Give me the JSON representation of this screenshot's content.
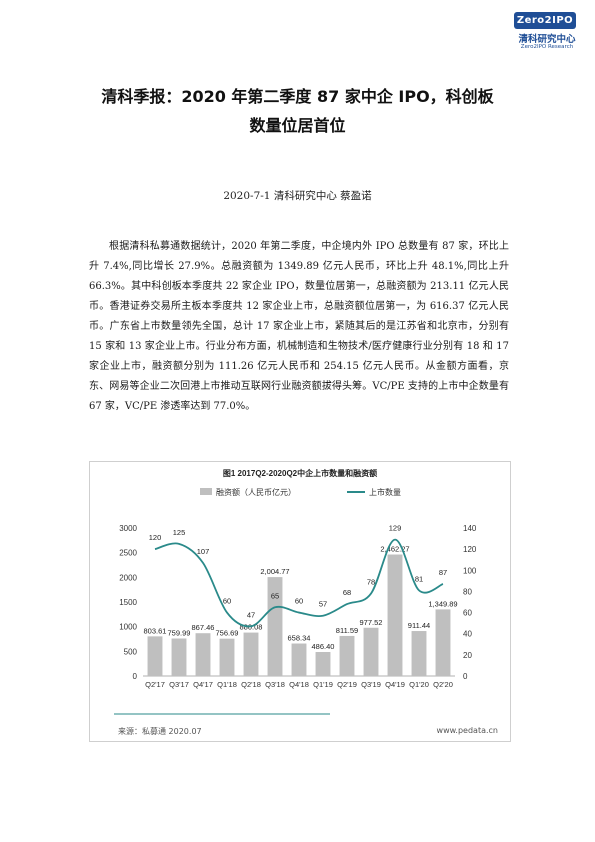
{
  "header": {
    "logo_badge": "Zero2IPO",
    "logo_cn": "清科研究中心",
    "logo_en": "Zero2IPO Research"
  },
  "title": {
    "line1": "清科季报：2020 年第二季度 87 家中企 IPO，科创板",
    "line2": "数量位居首位"
  },
  "byline": "2020-7-1 清科研究中心 蔡盈诺",
  "paragraph": "根据清科私募通数据统计，2020 年第二季度，中企境内外 IPO 总数量有 87 家，环比上升 7.4%,同比增长 27.9%。总融资额为 1349.89 亿元人民币，环比上升 48.1%,同比上升 66.3%。其中科创板本季度共 22 家企业 IPO，数量位居第一，总融资额为 213.11 亿元人民币。香港证券交易所主板本季度共 12 家企业上市，总融资额位居第一，为 616.37 亿元人民币。广东省上市数量领先全国，总计 17 家企业上市，紧随其后的是江苏省和北京市，分别有 15 家和 13 家企业上市。行业分布方面，机械制造和生物技术/医疗健康行业分别有 18 和 17 家企业上市，融资额分别为 111.26 亿元人民币和 254.15 亿元人民币。从金额方面看，京东、网易等企业二次回港上市推动互联网行业融资额拔得头筹。VC/PE 支持的上市中企数量有 67 家，VC/PE 渗透率达到 77.0%。",
  "figure": {
    "source": "来源：私募通 2020.07",
    "site": "www.pedata.cn"
  },
  "chart_data": {
    "type": "bar",
    "title": "图1 2017Q2-2020Q2中企上市数量和融资额",
    "categories": [
      "Q2'17",
      "Q3'17",
      "Q4'17",
      "Q1'18",
      "Q2'18",
      "Q3'18",
      "Q4'18",
      "Q1'19",
      "Q2'19",
      "Q3'19",
      "Q4'19",
      "Q1'20",
      "Q2'20"
    ],
    "series": [
      {
        "name": "融资额（人民币亿元）",
        "type": "bar",
        "axis": "left",
        "color": "#bfbfbf",
        "values": [
          803.61,
          759.99,
          867.46,
          756.69,
          880.08,
          2004.77,
          658.34,
          486.4,
          811.59,
          977.52,
          2462.27,
          911.44,
          1349.89
        ],
        "labels": [
          "803.61",
          "759.99",
          "867.46",
          "756.69",
          "880.08",
          "2,004.77",
          "658.34",
          "486.40",
          "811.59",
          "977.52",
          "2,462.27",
          "911.44",
          "1,349.89"
        ]
      },
      {
        "name": "上市数量",
        "type": "line",
        "axis": "right",
        "color": "#2a8a8a",
        "values": [
          120,
          125,
          107,
          60,
          47,
          65,
          60,
          57,
          68,
          78,
          129,
          81,
          87
        ]
      }
    ],
    "left_axis": {
      "ylim": [
        0,
        3000
      ],
      "ticks": [
        "0",
        "500",
        "1000",
        "1500",
        "2000",
        "2500",
        "3000"
      ]
    },
    "right_axis": {
      "ylim": [
        0,
        140
      ],
      "ticks": [
        "0",
        "20",
        "40",
        "60",
        "80",
        "100",
        "120",
        "140"
      ]
    },
    "legend_position": "top"
  }
}
